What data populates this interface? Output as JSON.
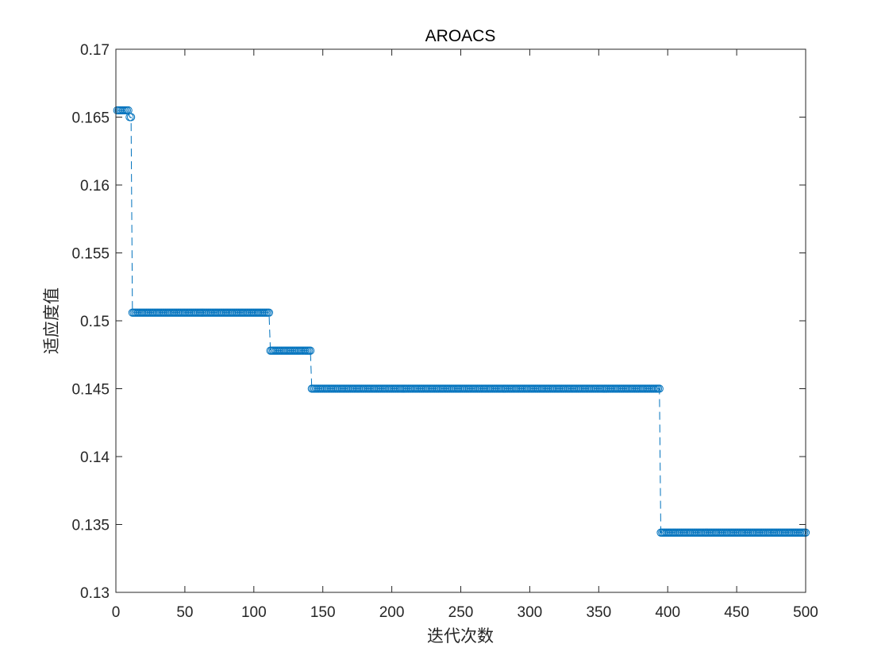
{
  "chart_data": {
    "type": "line",
    "title": "AROACS",
    "xlabel": "迭代次数",
    "ylabel": "适应度值",
    "xlim": [
      0,
      500
    ],
    "ylim": [
      0.13,
      0.17
    ],
    "xticks": [
      0,
      50,
      100,
      150,
      200,
      250,
      300,
      350,
      400,
      450,
      500
    ],
    "yticks": [
      0.13,
      0.135,
      0.14,
      0.145,
      0.15,
      0.155,
      0.16,
      0.165,
      0.17
    ],
    "xtick_labels": [
      "0",
      "50",
      "100",
      "150",
      "200",
      "250",
      "300",
      "350",
      "400",
      "450",
      "500"
    ],
    "ytick_labels": [
      "0.13",
      "0.135",
      "0.14",
      "0.145",
      "0.15",
      "0.155",
      "0.16",
      "0.165",
      "0.17"
    ],
    "grid": false,
    "line_style": "dashed",
    "marker": "circle",
    "color": "#0072BD",
    "series": [
      {
        "steps": [
          {
            "x_start": 1,
            "x_end": 9,
            "y": 0.1655
          },
          {
            "x_start": 10,
            "x_end": 11,
            "y": 0.165
          },
          {
            "x_start": 12,
            "x_end": 111,
            "y": 0.1506
          },
          {
            "x_start": 112,
            "x_end": 141,
            "y": 0.1478
          },
          {
            "x_start": 142,
            "x_end": 394,
            "y": 0.145
          },
          {
            "x_start": 395,
            "x_end": 500,
            "y": 0.1344
          }
        ]
      }
    ]
  }
}
